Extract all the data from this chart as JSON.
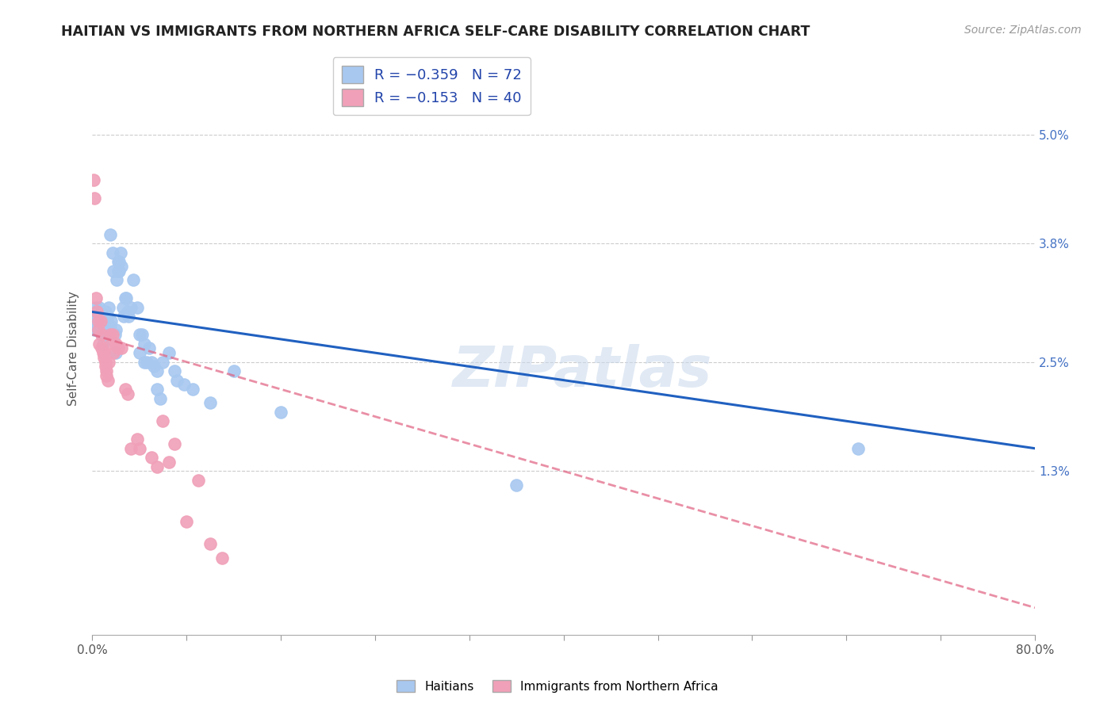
{
  "title": "HAITIAN VS IMMIGRANTS FROM NORTHERN AFRICA SELF-CARE DISABILITY CORRELATION CHART",
  "source": "Source: ZipAtlas.com",
  "ylabel": "Self-Care Disability",
  "ytick_labels": [
    "5.0%",
    "3.8%",
    "2.5%",
    "1.3%"
  ],
  "ytick_values": [
    0.05,
    0.038,
    0.025,
    0.013
  ],
  "xmin": 0.0,
  "xmax": 0.8,
  "ymin": -0.005,
  "ymax": 0.058,
  "watermark": "ZIPatlas",
  "blue_color": "#A8C8F0",
  "pink_color": "#F0A0B8",
  "line_blue": "#2060C0",
  "line_pink": "#E06080",
  "haitians_label": "Haitians",
  "immigrants_label": "Immigrants from Northern Africa",
  "blue_scatter": [
    [
      0.001,
      0.03
    ],
    [
      0.002,
      0.0295
    ],
    [
      0.002,
      0.0285
    ],
    [
      0.003,
      0.031
    ],
    [
      0.003,
      0.029
    ],
    [
      0.004,
      0.03
    ],
    [
      0.004,
      0.0295
    ],
    [
      0.005,
      0.0305
    ],
    [
      0.005,
      0.0285
    ],
    [
      0.006,
      0.031
    ],
    [
      0.006,
      0.029
    ],
    [
      0.007,
      0.03
    ],
    [
      0.007,
      0.0285
    ],
    [
      0.008,
      0.028
    ],
    [
      0.008,
      0.0295
    ],
    [
      0.009,
      0.027
    ],
    [
      0.009,
      0.03
    ],
    [
      0.01,
      0.0285
    ],
    [
      0.01,
      0.0295
    ],
    [
      0.011,
      0.0305
    ],
    [
      0.012,
      0.028
    ],
    [
      0.012,
      0.029
    ],
    [
      0.013,
      0.03
    ],
    [
      0.014,
      0.031
    ],
    [
      0.014,
      0.0285
    ],
    [
      0.015,
      0.029
    ],
    [
      0.015,
      0.039
    ],
    [
      0.016,
      0.0295
    ],
    [
      0.017,
      0.037
    ],
    [
      0.018,
      0.035
    ],
    [
      0.019,
      0.028
    ],
    [
      0.02,
      0.0285
    ],
    [
      0.02,
      0.026
    ],
    [
      0.021,
      0.034
    ],
    [
      0.022,
      0.035
    ],
    [
      0.022,
      0.036
    ],
    [
      0.023,
      0.035
    ],
    [
      0.023,
      0.036
    ],
    [
      0.024,
      0.037
    ],
    [
      0.025,
      0.0355
    ],
    [
      0.026,
      0.031
    ],
    [
      0.027,
      0.03
    ],
    [
      0.028,
      0.032
    ],
    [
      0.029,
      0.032
    ],
    [
      0.03,
      0.0305
    ],
    [
      0.031,
      0.03
    ],
    [
      0.033,
      0.031
    ],
    [
      0.035,
      0.034
    ],
    [
      0.038,
      0.031
    ],
    [
      0.04,
      0.028
    ],
    [
      0.04,
      0.026
    ],
    [
      0.042,
      0.028
    ],
    [
      0.044,
      0.027
    ],
    [
      0.044,
      0.025
    ],
    [
      0.046,
      0.025
    ],
    [
      0.048,
      0.0265
    ],
    [
      0.05,
      0.025
    ],
    [
      0.052,
      0.0245
    ],
    [
      0.055,
      0.024
    ],
    [
      0.055,
      0.022
    ],
    [
      0.058,
      0.021
    ],
    [
      0.06,
      0.025
    ],
    [
      0.065,
      0.026
    ],
    [
      0.07,
      0.024
    ],
    [
      0.072,
      0.023
    ],
    [
      0.078,
      0.0225
    ],
    [
      0.085,
      0.022
    ],
    [
      0.1,
      0.0205
    ],
    [
      0.12,
      0.024
    ],
    [
      0.16,
      0.0195
    ],
    [
      0.36,
      0.0115
    ],
    [
      0.65,
      0.0155
    ]
  ],
  "pink_scatter": [
    [
      0.001,
      0.045
    ],
    [
      0.002,
      0.043
    ],
    [
      0.003,
      0.032
    ],
    [
      0.004,
      0.0305
    ],
    [
      0.005,
      0.0295
    ],
    [
      0.005,
      0.0285
    ],
    [
      0.006,
      0.027
    ],
    [
      0.007,
      0.0295
    ],
    [
      0.008,
      0.028
    ],
    [
      0.008,
      0.0265
    ],
    [
      0.009,
      0.026
    ],
    [
      0.01,
      0.026
    ],
    [
      0.01,
      0.0255
    ],
    [
      0.011,
      0.025
    ],
    [
      0.011,
      0.0245
    ],
    [
      0.012,
      0.024
    ],
    [
      0.012,
      0.0235
    ],
    [
      0.013,
      0.023
    ],
    [
      0.014,
      0.025
    ],
    [
      0.015,
      0.028
    ],
    [
      0.016,
      0.027
    ],
    [
      0.017,
      0.028
    ],
    [
      0.018,
      0.026
    ],
    [
      0.02,
      0.027
    ],
    [
      0.022,
      0.0265
    ],
    [
      0.025,
      0.0265
    ],
    [
      0.028,
      0.022
    ],
    [
      0.03,
      0.0215
    ],
    [
      0.033,
      0.0155
    ],
    [
      0.038,
      0.0165
    ],
    [
      0.04,
      0.0155
    ],
    [
      0.05,
      0.0145
    ],
    [
      0.055,
      0.0135
    ],
    [
      0.06,
      0.0185
    ],
    [
      0.065,
      0.014
    ],
    [
      0.07,
      0.016
    ],
    [
      0.08,
      0.0075
    ],
    [
      0.09,
      0.012
    ],
    [
      0.1,
      0.005
    ],
    [
      0.11,
      0.0035
    ]
  ],
  "blue_line_x": [
    0.0,
    0.8
  ],
  "blue_line_y": [
    0.0305,
    0.0155
  ],
  "pink_line_x": [
    0.0,
    0.8
  ],
  "pink_line_y": [
    0.028,
    -0.002
  ],
  "grid_color": "#CCCCCC",
  "background_color": "#FFFFFF"
}
